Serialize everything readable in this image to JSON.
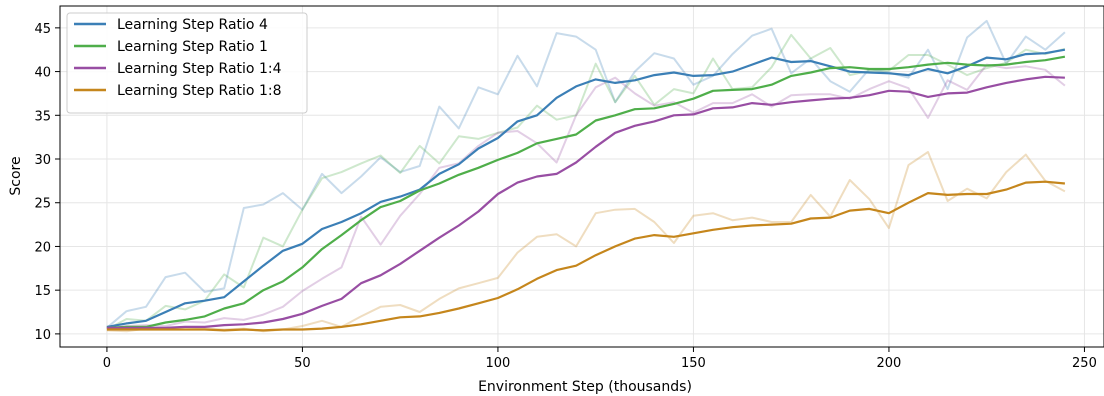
{
  "chart_data": {
    "type": "line",
    "xlabel": "Environment Step (thousands)",
    "ylabel": "Score",
    "xlim": [
      -12,
      255
    ],
    "ylim": [
      8.5,
      47.5
    ],
    "xticks": [
      0,
      50,
      100,
      150,
      200,
      250
    ],
    "yticks": [
      10,
      15,
      20,
      25,
      30,
      35,
      40,
      45
    ],
    "grid": true,
    "legend_position": "top-left",
    "x": [
      0,
      5,
      10,
      15,
      20,
      25,
      30,
      35,
      40,
      45,
      50,
      55,
      60,
      65,
      70,
      75,
      80,
      85,
      90,
      95,
      100,
      105,
      110,
      115,
      120,
      125,
      130,
      135,
      140,
      145,
      150,
      155,
      160,
      165,
      170,
      175,
      180,
      185,
      190,
      195,
      200,
      205,
      210,
      215,
      220,
      225,
      230,
      235,
      240,
      245
    ],
    "series": [
      {
        "name": "Learning Step Ratio 4",
        "color": "#3b7fb6",
        "values": [
          10.8,
          11.2,
          11.5,
          12.5,
          13.5,
          13.8,
          14.2,
          16.0,
          17.8,
          19.5,
          20.3,
          22.0,
          22.8,
          23.8,
          25.1,
          25.7,
          26.5,
          28.3,
          29.4,
          31.2,
          32.4,
          34.3,
          35.0,
          37.0,
          38.3,
          39.1,
          38.7,
          39.0,
          39.6,
          39.9,
          39.5,
          39.6,
          40.0,
          40.8,
          41.6,
          41.1,
          41.2,
          40.6,
          40.0,
          39.9,
          39.8,
          39.6,
          40.3,
          39.8,
          40.6,
          41.6,
          41.4,
          42.0,
          42.1,
          42.5
        ],
        "raw": [
          10.7,
          12.6,
          13.1,
          16.5,
          17.0,
          14.8,
          15.2,
          24.4,
          24.8,
          26.1,
          24.2,
          28.3,
          26.1,
          28.0,
          30.2,
          28.5,
          29.2,
          36.0,
          33.5,
          38.2,
          37.4,
          41.8,
          38.3,
          44.4,
          44.0,
          42.5,
          36.5,
          40.0,
          42.1,
          41.5,
          38.5,
          39.5,
          42.0,
          44.1,
          44.9,
          39.8,
          41.5,
          38.9,
          37.7,
          40.3,
          39.9,
          39.3,
          42.5,
          38.0,
          43.9,
          45.8,
          40.9,
          44.0,
          42.5,
          44.5
        ]
      },
      {
        "name": "Learning Step Ratio 1",
        "color": "#4fae4a",
        "values": [
          10.7,
          10.8,
          10.8,
          11.3,
          11.6,
          12.0,
          12.9,
          13.5,
          15.0,
          16.0,
          17.6,
          19.7,
          21.3,
          23.0,
          24.5,
          25.2,
          26.4,
          27.2,
          28.2,
          29.0,
          29.9,
          30.7,
          31.8,
          32.3,
          32.8,
          34.4,
          35.0,
          35.7,
          35.8,
          36.3,
          36.9,
          37.8,
          37.9,
          38.0,
          38.5,
          39.5,
          39.9,
          40.4,
          40.5,
          40.3,
          40.3,
          40.5,
          40.8,
          41.0,
          40.8,
          40.7,
          40.8,
          41.1,
          41.3,
          41.7
        ],
        "raw": [
          10.5,
          11.7,
          11.5,
          13.2,
          12.8,
          13.8,
          16.8,
          15.3,
          21.0,
          20.0,
          24.2,
          27.8,
          28.5,
          29.5,
          30.4,
          28.4,
          31.5,
          29.5,
          32.6,
          32.3,
          33.0,
          33.6,
          36.1,
          34.5,
          35.0,
          40.9,
          36.5,
          39.5,
          36.2,
          38.0,
          37.5,
          41.5,
          38.0,
          38.2,
          40.5,
          44.2,
          41.5,
          42.7,
          39.6,
          40.1,
          40.1,
          41.9,
          41.9,
          40.8,
          39.6,
          40.4,
          41.0,
          42.5,
          42.0,
          42.6
        ]
      },
      {
        "name": "Learning Step Ratio 1:4",
        "color": "#984ea3",
        "values": [
          10.7,
          10.7,
          10.7,
          10.7,
          10.8,
          10.8,
          11.0,
          11.1,
          11.3,
          11.7,
          12.3,
          13.2,
          14.0,
          15.8,
          16.7,
          18.0,
          19.5,
          21.0,
          22.4,
          24.0,
          26.0,
          27.3,
          28.0,
          28.3,
          29.6,
          31.4,
          33.0,
          33.8,
          34.3,
          35.0,
          35.1,
          35.8,
          35.9,
          36.4,
          36.2,
          36.5,
          36.7,
          36.9,
          37.0,
          37.3,
          37.8,
          37.7,
          37.1,
          37.5,
          37.6,
          38.2,
          38.7,
          39.1,
          39.4,
          39.3
        ],
        "raw": [
          10.6,
          10.9,
          11.0,
          10.9,
          11.4,
          11.3,
          11.8,
          11.6,
          12.2,
          13.1,
          14.9,
          16.3,
          17.6,
          23.4,
          20.2,
          23.5,
          26.0,
          29.0,
          29.5,
          31.5,
          33.0,
          33.2,
          31.8,
          29.6,
          35.0,
          38.2,
          39.3,
          37.5,
          36.1,
          36.5,
          35.3,
          36.4,
          36.4,
          37.4,
          36.0,
          37.3,
          37.4,
          37.4,
          36.9,
          38.0,
          38.9,
          38.1,
          34.7,
          39.0,
          37.9,
          40.8,
          40.4,
          40.6,
          40.2,
          38.4
        ]
      },
      {
        "name": "Learning Step Ratio 1:8",
        "color": "#c5861c",
        "values": [
          10.5,
          10.5,
          10.5,
          10.5,
          10.5,
          10.5,
          10.4,
          10.5,
          10.4,
          10.5,
          10.5,
          10.6,
          10.8,
          11.1,
          11.5,
          11.9,
          12.0,
          12.4,
          12.9,
          13.5,
          14.1,
          15.1,
          16.3,
          17.3,
          17.8,
          19.0,
          20.0,
          20.9,
          21.3,
          21.1,
          21.5,
          21.9,
          22.2,
          22.4,
          22.5,
          22.6,
          23.2,
          23.3,
          24.1,
          24.3,
          23.8,
          25.0,
          26.1,
          25.9,
          26.0,
          26.0,
          26.5,
          27.3,
          27.4,
          27.2
        ],
        "raw": [
          10.4,
          10.3,
          10.6,
          10.6,
          10.5,
          10.6,
          10.5,
          10.6,
          10.3,
          10.5,
          10.9,
          11.5,
          10.8,
          12.0,
          13.1,
          13.3,
          12.5,
          14.0,
          15.2,
          15.8,
          16.4,
          19.3,
          21.1,
          21.4,
          20.0,
          23.8,
          24.2,
          24.3,
          22.8,
          20.4,
          23.5,
          23.8,
          23.0,
          23.3,
          22.8,
          22.8,
          25.9,
          23.4,
          27.6,
          25.4,
          22.1,
          29.3,
          30.8,
          25.2,
          26.6,
          25.5,
          28.5,
          30.5,
          27.5,
          26.3
        ]
      }
    ]
  }
}
